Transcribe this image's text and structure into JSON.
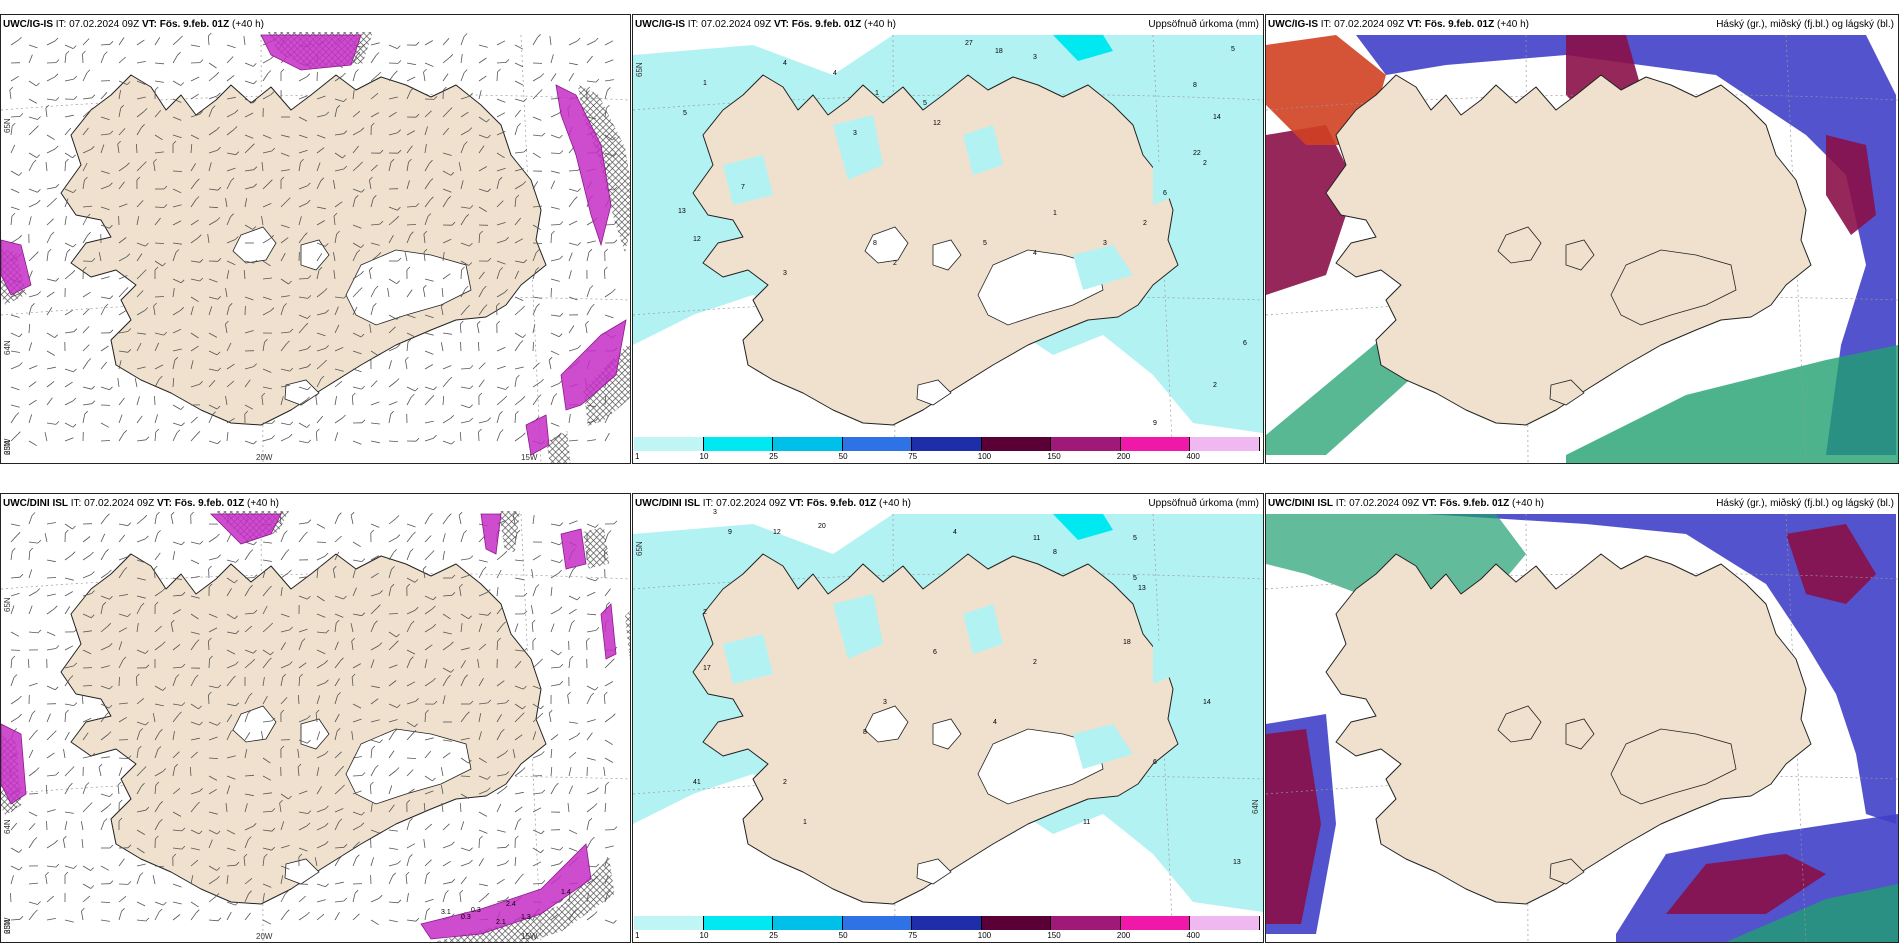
{
  "panels": [
    {
      "id": "p1",
      "kind": "wind",
      "model": "UWC/IG-IS",
      "it": "IT: 07.02.2024 09Z",
      "vt": "VT: Fös. 9.feb. 01Z",
      "lead": "(+40 h)",
      "right_title": "",
      "axes": {
        "lat_top": "65N",
        "lat_mid": "64N",
        "lat_bot": "63N",
        "lon_left": "20W",
        "lon_right": "15W",
        "corner": "25W"
      },
      "values": []
    },
    {
      "id": "p2",
      "kind": "precip",
      "model": "UWC/IG-IS",
      "it": "IT: 07.02.2024 09Z",
      "vt": "VT: Fös. 9.feb. 01Z",
      "lead": "(+40 h)",
      "right_title": "Uppsöfnuð úrkoma (mm)",
      "axes": {
        "lat_top": "65N"
      },
      "values": [
        "1",
        "27",
        "18",
        "3",
        "5",
        "4",
        "4",
        "1",
        "8",
        "5",
        "14",
        "2",
        "12",
        "22",
        "6",
        "7",
        "13",
        "12",
        "8",
        "3",
        "2",
        "5",
        "4",
        "3",
        "1",
        "2",
        "5",
        "3",
        "6",
        "2",
        "9"
      ]
    },
    {
      "id": "p3",
      "kind": "cloud",
      "model": "UWC/IG-IS",
      "it": "IT: 07.02.2024 09Z",
      "vt": "VT: Fös. 9.feb. 01Z",
      "lead": "(+40 h)",
      "right_title": "Háský (gr.), miðský (fj.bl.) og lágský (bl.)",
      "axes": {},
      "values": []
    },
    {
      "id": "p4",
      "kind": "wind",
      "model": "UWC/DINI ISL",
      "it": "IT: 07.02.2024 09Z",
      "vt": "VT: Fös. 9.feb. 01Z",
      "lead": "(+40 h)",
      "right_title": "",
      "axes": {
        "lat_top": "65N",
        "lat_mid": "64N",
        "lat_bot": "63N",
        "lon_left": "20W",
        "lon_right": "15W",
        "corner": "25W"
      },
      "values": [
        "1.3",
        "3.1",
        "0.3",
        "0.3",
        "2.4",
        "2.1",
        "1.4"
      ]
    },
    {
      "id": "p5",
      "kind": "precip",
      "model": "UWC/DINI ISL",
      "it": "IT: 07.02.2024 09Z",
      "vt": "VT: Fös. 9.feb. 01Z",
      "lead": "(+40 h)",
      "right_title": "Uppsöfnuð úrkoma (mm)",
      "axes": {
        "lat_top": "65N",
        "lat_mid": "64N"
      },
      "values": [
        "3",
        "9",
        "12",
        "20",
        "4",
        "11",
        "8",
        "5",
        "13",
        "18",
        "2",
        "17",
        "14",
        "6",
        "1",
        "41",
        "11",
        "13",
        "5",
        "2",
        "4",
        "6",
        "3",
        "2",
        "8"
      ]
    },
    {
      "id": "p6",
      "kind": "cloud",
      "model": "UWC/DINI ISL",
      "it": "IT: 07.02.2024 09Z",
      "vt": "VT: Fös. 9.feb. 01Z",
      "lead": "(+40 h)",
      "right_title": "Háský (gr.), miðský (fj.bl.) og lágský (bl.)",
      "axes": {},
      "values": []
    }
  ],
  "colorbar": {
    "labels": [
      "1",
      "10",
      "25",
      "50",
      "75",
      "100",
      "150",
      "200",
      "400"
    ],
    "colors": [
      "#bff5f5",
      "#00e8f0",
      "#00c0ea",
      "#2f72e6",
      "#1e2ea8",
      "#5a0036",
      "#a01878",
      "#f018a8",
      "#f0b8f0"
    ]
  },
  "colors": {
    "land": "#efe1cd",
    "precip_light": "#b3f2f2",
    "wind_purple": "#c62ec6",
    "cloud_blue": "#4040c8",
    "cloud_dark": "#8a1048",
    "cloud_green": "#20a070",
    "cloud_red": "#d04020"
  }
}
